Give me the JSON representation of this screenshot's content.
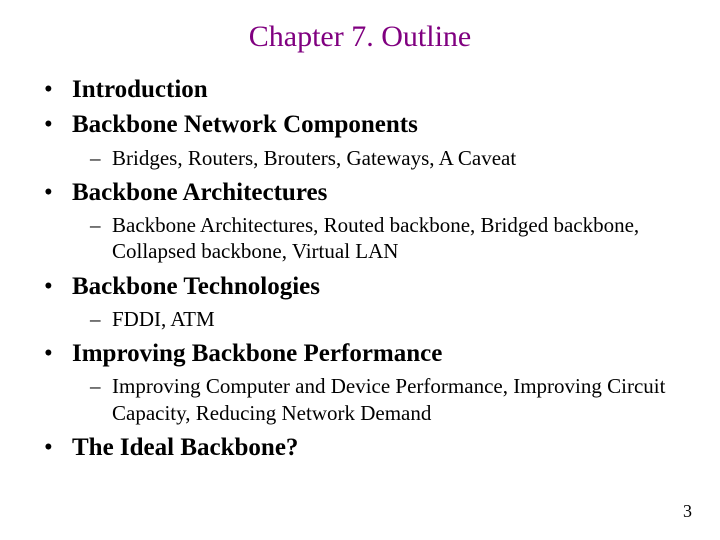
{
  "title": "Chapter 7. Outline",
  "title_color": "#800080",
  "text_color": "#000000",
  "background_color": "#ffffff",
  "font_family": "Times New Roman",
  "title_fontsize": 30,
  "level1_fontsize": 25,
  "level2_fontsize": 21,
  "page_number": "3",
  "outline": [
    {
      "label": "Introduction"
    },
    {
      "label": "Backbone Network Components",
      "sub": [
        "Bridges, Routers, Brouters, Gateways, A Caveat"
      ]
    },
    {
      "label": "Backbone Architectures",
      "sub": [
        "Backbone Architectures, Routed backbone, Bridged backbone, Collapsed backbone, Virtual LAN"
      ]
    },
    {
      "label": "Backbone Technologies",
      "sub": [
        "FDDI, ATM"
      ]
    },
    {
      "label": "Improving Backbone Performance",
      "sub": [
        "Improving Computer and Device Performance, Improving Circuit Capacity, Reducing Network Demand"
      ]
    },
    {
      "label": "The Ideal Backbone?"
    }
  ]
}
